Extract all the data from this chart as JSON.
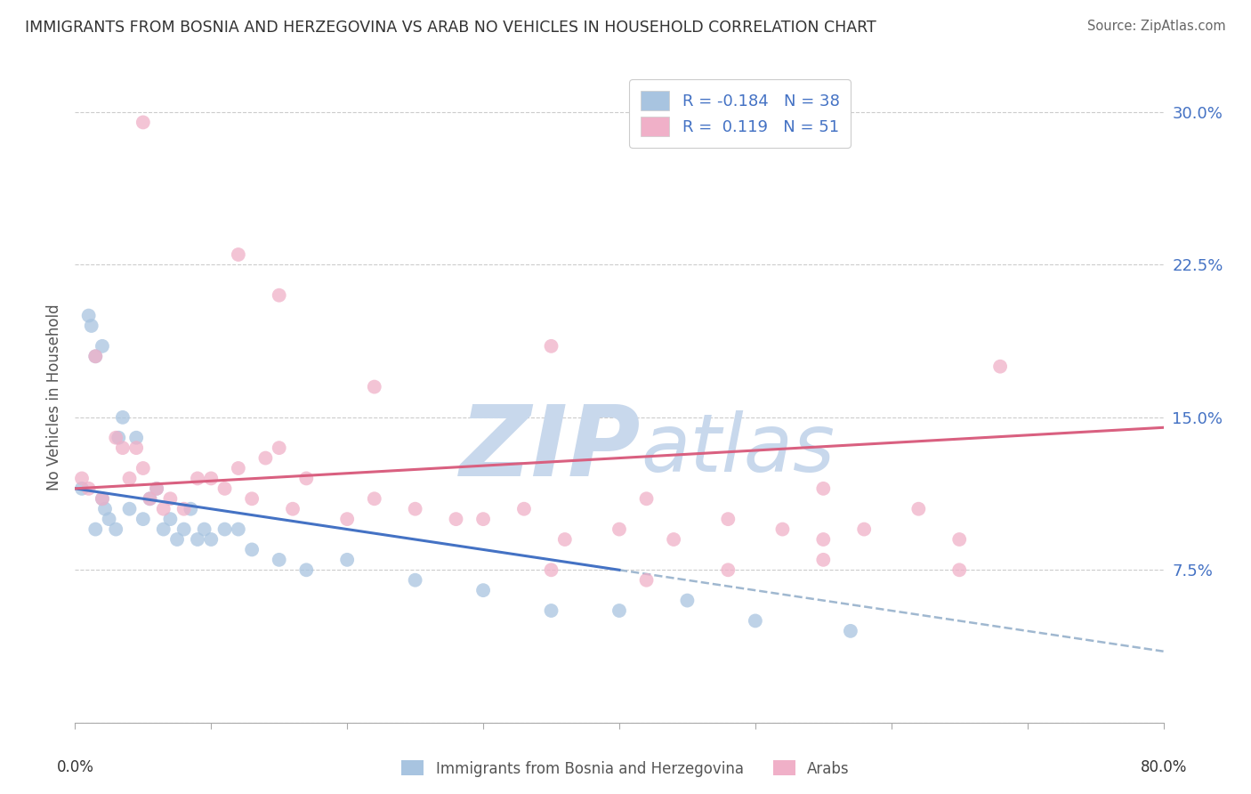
{
  "title": "IMMIGRANTS FROM BOSNIA AND HERZEGOVINA VS ARAB NO VEHICLES IN HOUSEHOLD CORRELATION CHART",
  "source": "Source: ZipAtlas.com",
  "ylabel": "No Vehicles in Household",
  "xlim": [
    0.0,
    80.0
  ],
  "ylim": [
    0.0,
    32.0
  ],
  "yticks": [
    0.0,
    7.5,
    15.0,
    22.5,
    30.0
  ],
  "ytick_labels": [
    "",
    "7.5%",
    "15.0%",
    "22.5%",
    "30.0%"
  ],
  "color_blue": "#a8c4e0",
  "color_pink": "#f0b0c8",
  "color_blue_line": "#4472c4",
  "color_pink_line": "#d96080",
  "color_dashed": "#a0b8d0",
  "watermark_color": "#c8d8ec",
  "blue_scatter_x": [
    0.5,
    1.0,
    1.2,
    1.5,
    1.5,
    2.0,
    2.0,
    2.2,
    2.5,
    3.0,
    3.2,
    3.5,
    4.0,
    4.5,
    5.0,
    5.5,
    6.0,
    6.5,
    7.0,
    7.5,
    8.0,
    8.5,
    9.0,
    9.5,
    10.0,
    11.0,
    12.0,
    13.0,
    15.0,
    17.0,
    20.0,
    25.0,
    30.0,
    35.0,
    40.0,
    45.0,
    50.0,
    57.0
  ],
  "blue_scatter_y": [
    11.5,
    20.0,
    19.5,
    18.0,
    9.5,
    18.5,
    11.0,
    10.5,
    10.0,
    9.5,
    14.0,
    15.0,
    10.5,
    14.0,
    10.0,
    11.0,
    11.5,
    9.5,
    10.0,
    9.0,
    9.5,
    10.5,
    9.0,
    9.5,
    9.0,
    9.5,
    9.5,
    8.5,
    8.0,
    7.5,
    8.0,
    7.0,
    6.5,
    5.5,
    5.5,
    6.0,
    5.0,
    4.5
  ],
  "pink_scatter_x": [
    0.5,
    1.0,
    1.5,
    2.0,
    3.0,
    3.5,
    4.0,
    4.5,
    5.0,
    5.5,
    6.0,
    6.5,
    7.0,
    8.0,
    9.0,
    10.0,
    11.0,
    12.0,
    13.0,
    14.0,
    15.0,
    16.0,
    17.0,
    20.0,
    22.0,
    25.0,
    28.0,
    30.0,
    33.0,
    36.0,
    40.0,
    44.0,
    48.0,
    52.0,
    55.0,
    58.0,
    62.0,
    65.0,
    68.0,
    42.0,
    5.0,
    15.0,
    35.0,
    55.0,
    65.0,
    48.0,
    12.0,
    22.0,
    35.0,
    42.0,
    55.0
  ],
  "pink_scatter_y": [
    12.0,
    11.5,
    18.0,
    11.0,
    14.0,
    13.5,
    12.0,
    13.5,
    12.5,
    11.0,
    11.5,
    10.5,
    11.0,
    10.5,
    12.0,
    12.0,
    11.5,
    12.5,
    11.0,
    13.0,
    13.5,
    10.5,
    12.0,
    10.0,
    11.0,
    10.5,
    10.0,
    10.0,
    10.5,
    9.0,
    9.5,
    9.0,
    10.0,
    9.5,
    9.0,
    9.5,
    10.5,
    9.0,
    17.5,
    11.0,
    29.5,
    21.0,
    18.5,
    11.5,
    7.5,
    7.5,
    23.0,
    16.5,
    7.5,
    7.0,
    8.0
  ],
  "blue_line_x": [
    0.0,
    40.0
  ],
  "blue_line_y": [
    11.5,
    7.5
  ],
  "dashed_line_x": [
    40.0,
    80.0
  ],
  "dashed_line_y": [
    7.5,
    3.5
  ],
  "pink_line_x": [
    0.0,
    80.0
  ],
  "pink_line_y": [
    11.5,
    14.5
  ],
  "legend_label_blue": "Immigrants from Bosnia and Herzegovina",
  "legend_label_pink": "Arabs"
}
